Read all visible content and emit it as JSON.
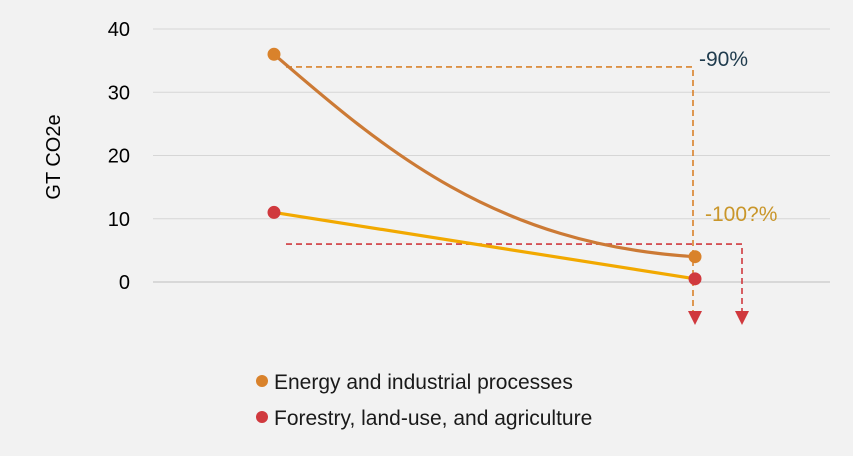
{
  "chart_data": {
    "type": "line",
    "ylabel": "GT CO2e",
    "ylim": [
      0,
      40
    ],
    "yticks": [
      0,
      10,
      20,
      30,
      40
    ],
    "grid": true,
    "legend_position": "bottom",
    "series": [
      {
        "name": "Energy and industrial processes",
        "color": "#d9822b",
        "line_color": "#cc7a35",
        "curve": "convex-decay",
        "start": 36,
        "end": 4
      },
      {
        "name": "Forestry, land-use, and agriculture",
        "color": "#d0393e",
        "line_color": "#f2a900",
        "curve": "linear",
        "start": 11,
        "end": 0.5
      }
    ],
    "annotations": [
      {
        "text": "-90%",
        "color": "#1f3b4d",
        "series": 0,
        "reference_y": 34
      },
      {
        "text": "-100?%",
        "color": "#c9962a",
        "series": 1,
        "reference_y": 6
      }
    ]
  }
}
